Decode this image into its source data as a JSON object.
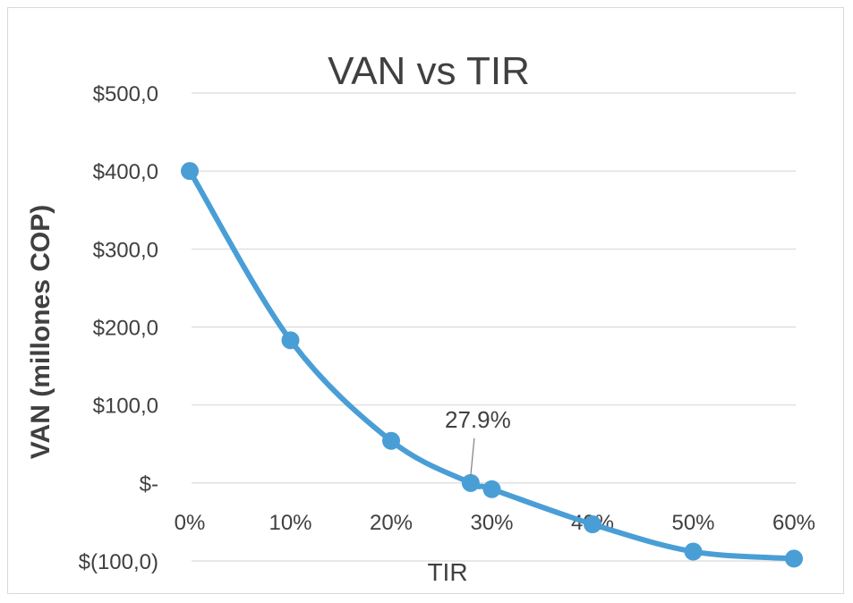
{
  "chart_data": {
    "type": "line",
    "title": "VAN vs TIR",
    "xlabel": "TIR",
    "ylabel": "VAN (millones COP)",
    "x_ticks": [
      0,
      0.1,
      0.2,
      0.3,
      0.4,
      0.5,
      0.6
    ],
    "x_tick_labels": [
      "0%",
      "10%",
      "20%",
      "30%",
      "40%",
      "50%",
      "60%"
    ],
    "y_ticks": [
      500,
      400,
      300,
      200,
      100,
      0,
      -100
    ],
    "y_tick_labels": [
      "$500,0",
      "$400,0",
      "$300,0",
      "$200,0",
      "$100,0",
      "$-",
      "$(100,0)"
    ],
    "xlim": [
      0,
      0.6
    ],
    "ylim": [
      -100,
      500
    ],
    "grid": "horizontal",
    "series": [
      {
        "x": [
          0,
          0.1,
          0.2,
          0.279,
          0.3,
          0.4,
          0.5,
          0.6
        ],
        "y": [
          400,
          183,
          54,
          0,
          -8,
          -53,
          -88,
          -97
        ],
        "color": "#4a9ed6"
      }
    ],
    "annotation": {
      "text": "27.9%",
      "x": 0.279,
      "y": 0
    }
  }
}
